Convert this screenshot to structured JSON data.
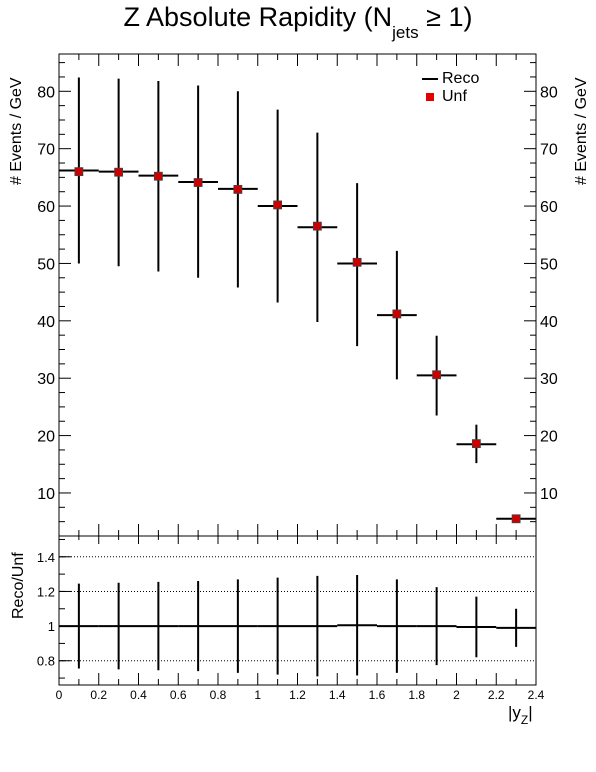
{
  "title": {
    "main": "Z Absolute Rapidity (N",
    "sub": "jets",
    "tail": " ≥ 1)"
  },
  "legend": {
    "reco": "Reco",
    "unf": "Unf"
  },
  "colors": {
    "reco": "#000000",
    "unf": "#cc0000",
    "unf_edge": "#444444"
  },
  "chart_data": [
    {
      "type": "scatter",
      "panel": "main",
      "ylabel": "# Events / GeV",
      "ylim": [
        2.5,
        86.5
      ],
      "yticks": [
        10,
        20,
        30,
        40,
        50,
        60,
        70,
        80
      ],
      "xlim": [
        0,
        2.4
      ],
      "bin_edges": [
        0,
        0.2,
        0.4,
        0.6,
        0.8,
        1.0,
        1.2,
        1.4,
        1.6,
        1.8,
        2.0,
        2.2,
        2.4
      ],
      "series": [
        {
          "name": "Reco",
          "style": "step-with-errors",
          "x": [
            0.1,
            0.3,
            0.5,
            0.7,
            0.9,
            1.1,
            1.3,
            1.5,
            1.7,
            1.9,
            2.1,
            2.3
          ],
          "values": [
            66.2,
            66.0,
            65.3,
            64.2,
            63.0,
            60.0,
            56.3,
            50.0,
            41.0,
            30.5,
            18.5,
            5.5
          ],
          "err_low": [
            16.2,
            16.5,
            16.7,
            16.7,
            17.2,
            16.8,
            16.5,
            14.4,
            11.2,
            7.0,
            3.3,
            0.0
          ],
          "err_high": [
            16.2,
            16.2,
            16.5,
            16.8,
            17.0,
            16.8,
            16.5,
            14.0,
            11.2,
            6.9,
            3.4,
            0.0
          ]
        },
        {
          "name": "Unf",
          "style": "square-markers",
          "x": [
            0.1,
            0.3,
            0.5,
            0.7,
            0.9,
            1.1,
            1.3,
            1.5,
            1.7,
            1.9,
            2.1,
            2.3
          ],
          "values": [
            66.0,
            65.9,
            65.2,
            64.1,
            62.9,
            60.2,
            56.5,
            50.2,
            41.2,
            30.6,
            18.6,
            5.5
          ]
        }
      ]
    },
    {
      "type": "scatter",
      "panel": "ratio",
      "ylabel": "Reco/Unf",
      "xlabel": "|y",
      "xlabel_sub": "Z",
      "xlabel_tail": "|",
      "ylim": [
        0.66,
        1.52
      ],
      "yticks": [
        0.8,
        1,
        1.2,
        1.4
      ],
      "ytick_labels": [
        "0.8",
        "1",
        "1.2",
        "1.4"
      ],
      "gridlines": [
        0.8,
        1.2,
        1.4
      ],
      "xlim": [
        0,
        2.4
      ],
      "xticks": [
        0,
        0.2,
        0.4,
        0.6,
        0.8,
        1,
        1.2,
        1.4,
        1.6,
        1.8,
        2,
        2.2,
        2.4
      ],
      "xtick_labels": [
        "0",
        "0.2",
        "0.4",
        "0.6",
        "0.8",
        "1",
        "1.2",
        "1.4",
        "1.6",
        "1.8",
        "2",
        "2.2",
        "2.4"
      ],
      "bin_edges": [
        0,
        0.2,
        0.4,
        0.6,
        0.8,
        1.0,
        1.2,
        1.4,
        1.6,
        1.8,
        2.0,
        2.2,
        2.4
      ],
      "x": [
        0.1,
        0.3,
        0.5,
        0.7,
        0.9,
        1.1,
        1.3,
        1.5,
        1.7,
        1.9,
        2.1,
        2.3
      ],
      "values": [
        1.0,
        1.0,
        1.0,
        1.0,
        1.0,
        1.0,
        1.0,
        1.005,
        1.0,
        1.0,
        0.995,
        0.99
      ],
      "err": [
        0.245,
        0.25,
        0.255,
        0.26,
        0.27,
        0.28,
        0.29,
        0.29,
        0.27,
        0.225,
        0.175,
        0.11
      ]
    }
  ]
}
